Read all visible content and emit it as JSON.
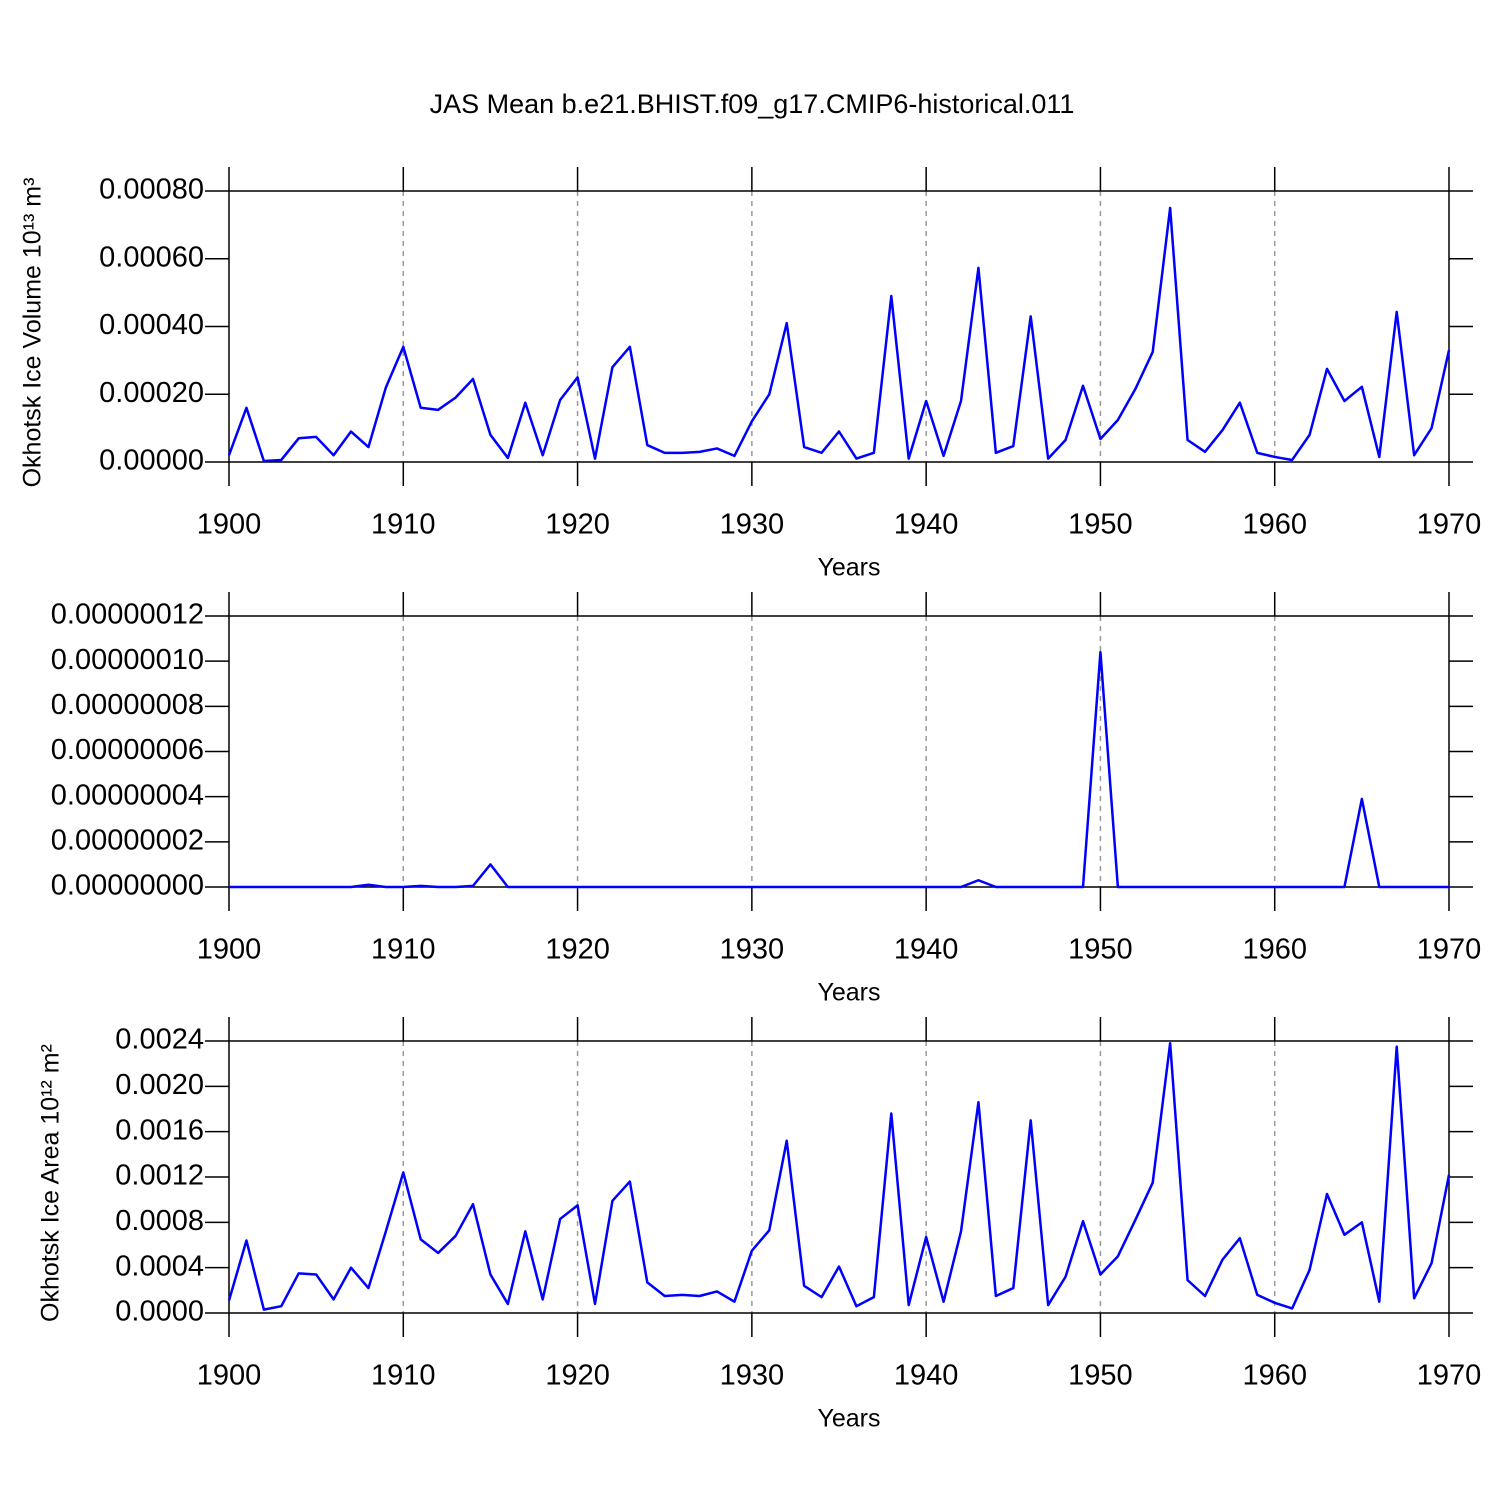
{
  "chart_data": [
    {
      "type": "line",
      "title": "JAS Mean b.e21.BHIST.f09_g17.CMIP6-historical.011",
      "ylabel": "Okhotsk Ice Volume 10¹³ m³",
      "xlabel": "Years",
      "x": [
        1900,
        1901,
        1902,
        1903,
        1904,
        1905,
        1906,
        1907,
        1908,
        1909,
        1910,
        1911,
        1912,
        1913,
        1914,
        1915,
        1916,
        1917,
        1918,
        1919,
        1920,
        1921,
        1922,
        1923,
        1924,
        1925,
        1926,
        1927,
        1928,
        1929,
        1930,
        1931,
        1932,
        1933,
        1934,
        1935,
        1936,
        1937,
        1938,
        1939,
        1940,
        1941,
        1942,
        1943,
        1944,
        1945,
        1946,
        1947,
        1948,
        1949,
        1950,
        1951,
        1952,
        1953,
        1954,
        1955,
        1956,
        1957,
        1958,
        1959,
        1960,
        1961,
        1962,
        1963,
        1964,
        1965,
        1966,
        1967,
        1968,
        1969,
        1970
      ],
      "values": [
        2e-05,
        0.00016,
        3e-06,
        6e-06,
        7e-05,
        7.4e-05,
        2e-05,
        9e-05,
        4.4e-05,
        0.00022,
        0.00034,
        0.00016,
        0.000154,
        0.00019,
        0.000245,
        8e-05,
        1.2e-05,
        0.000175,
        2e-05,
        0.000183,
        0.00025,
        1e-05,
        0.00028,
        0.00034,
        5e-05,
        2.7e-05,
        2.7e-05,
        3e-05,
        4e-05,
        1.8e-05,
        0.00012,
        0.0002,
        0.00041,
        4.4e-05,
        2.7e-05,
        9e-05,
        1e-05,
        2.7e-05,
        0.00049,
        1e-05,
        0.00018,
        1.8e-05,
        0.00018,
        0.000573,
        2.7e-05,
        4.7e-05,
        0.00043,
        1e-05,
        6.5e-05,
        0.000225,
        6.8e-05,
        0.000124,
        0.000215,
        0.000325,
        0.00075,
        6.5e-05,
        3e-05,
        9.4e-05,
        0.000175,
        2.7e-05,
        1.5e-05,
        6e-06,
        8e-05,
        0.000275,
        0.00018,
        0.000222,
        1.5e-05,
        0.000443,
        2e-05,
        0.0001,
        0.00033
      ],
      "color": "#0000ff",
      "xlim": [
        1900,
        1970
      ],
      "xticks": [
        1900,
        1910,
        1920,
        1930,
        1940,
        1950,
        1960,
        1970
      ],
      "ylim": [
        0,
        0.0008
      ],
      "yticks": [
        {
          "value": 0,
          "label": "0.00000"
        },
        {
          "value": 0.0002,
          "label": "0.00020"
        },
        {
          "value": 0.0004,
          "label": "0.00040"
        },
        {
          "value": 0.0006,
          "label": "0.00060"
        },
        {
          "value": 0.0008,
          "label": "0.00080"
        }
      ],
      "xgrid": true
    },
    {
      "type": "line",
      "xlabel": "Years",
      "x": [
        1900,
        1901,
        1902,
        1903,
        1904,
        1905,
        1906,
        1907,
        1908,
        1909,
        1910,
        1911,
        1912,
        1913,
        1914,
        1915,
        1916,
        1917,
        1918,
        1919,
        1920,
        1921,
        1922,
        1923,
        1924,
        1925,
        1926,
        1927,
        1928,
        1929,
        1930,
        1931,
        1932,
        1933,
        1934,
        1935,
        1936,
        1937,
        1938,
        1939,
        1940,
        1941,
        1942,
        1943,
        1944,
        1945,
        1946,
        1947,
        1948,
        1949,
        1950,
        1951,
        1952,
        1953,
        1954,
        1955,
        1956,
        1957,
        1958,
        1959,
        1960,
        1961,
        1962,
        1963,
        1964,
        1965,
        1966,
        1967,
        1968,
        1969,
        1970
      ],
      "values": [
        0,
        0,
        0,
        0,
        0,
        0,
        0,
        0,
        1e-09,
        0,
        0,
        5e-10,
        0,
        0,
        5e-10,
        1e-08,
        0,
        0,
        0,
        0,
        0,
        0,
        0,
        0,
        0,
        0,
        0,
        0,
        0,
        0,
        0,
        0,
        0,
        0,
        0,
        0,
        0,
        0,
        0,
        0,
        0,
        0,
        0,
        3e-09,
        0,
        0,
        0,
        0,
        0,
        0,
        1.04e-07,
        0,
        0,
        0,
        0,
        0,
        0,
        0,
        0,
        0,
        0,
        0,
        0,
        0,
        0,
        3.9e-08,
        0,
        0,
        0,
        0,
        0
      ],
      "color": "#0000ff",
      "xlim": [
        1900,
        1970
      ],
      "xticks": [
        1900,
        1910,
        1920,
        1930,
        1940,
        1950,
        1960,
        1970
      ],
      "ylim": [
        0,
        1.2e-07
      ],
      "yticks": [
        {
          "value": 0,
          "label": "0.00000000"
        },
        {
          "value": 2e-08,
          "label": "0.00000002"
        },
        {
          "value": 4e-08,
          "label": "0.00000004"
        },
        {
          "value": 6e-08,
          "label": "0.00000006"
        },
        {
          "value": 8e-08,
          "label": "0.00000008"
        },
        {
          "value": 1e-07,
          "label": "0.00000010"
        },
        {
          "value": 1.2e-07,
          "label": "0.00000012"
        }
      ],
      "xgrid": true
    },
    {
      "type": "line",
      "ylabel": "Okhotsk Ice Area 10¹² m²",
      "xlabel": "Years",
      "x": [
        1900,
        1901,
        1902,
        1903,
        1904,
        1905,
        1906,
        1907,
        1908,
        1909,
        1910,
        1911,
        1912,
        1913,
        1914,
        1915,
        1916,
        1917,
        1918,
        1919,
        1920,
        1921,
        1922,
        1923,
        1924,
        1925,
        1926,
        1927,
        1928,
        1929,
        1930,
        1931,
        1932,
        1933,
        1934,
        1935,
        1936,
        1937,
        1938,
        1939,
        1940,
        1941,
        1942,
        1943,
        1944,
        1945,
        1946,
        1947,
        1948,
        1949,
        1950,
        1951,
        1952,
        1953,
        1954,
        1955,
        1956,
        1957,
        1958,
        1959,
        1960,
        1961,
        1962,
        1963,
        1964,
        1965,
        1966,
        1967,
        1968,
        1969,
        1970
      ],
      "values": [
        0.00011,
        0.00064,
        3e-05,
        6e-05,
        0.00035,
        0.00034,
        0.00012,
        0.0004,
        0.00022,
        0.00072,
        0.00124,
        0.00065,
        0.00053,
        0.00068,
        0.00096,
        0.00034,
        8e-05,
        0.00072,
        0.00012,
        0.00083,
        0.00095,
        8e-05,
        0.00099,
        0.00116,
        0.00027,
        0.00015,
        0.00016,
        0.00015,
        0.00019,
        0.0001,
        0.00055,
        0.00073,
        0.00152,
        0.00024,
        0.00014,
        0.00041,
        6e-05,
        0.00014,
        0.00176,
        7e-05,
        0.00067,
        0.0001,
        0.00072,
        0.00186,
        0.00015,
        0.00022,
        0.0017,
        7e-05,
        0.00032,
        0.00081,
        0.00034,
        0.0005,
        0.00082,
        0.00115,
        0.00238,
        0.00029,
        0.00015,
        0.00047,
        0.00066,
        0.00016,
        9e-05,
        4e-05,
        0.00038,
        0.00105,
        0.00069,
        0.0008,
        0.0001,
        0.00235,
        0.00013,
        0.00044,
        0.00122
      ],
      "color": "#0000ff",
      "xlim": [
        1900,
        1970
      ],
      "xticks": [
        1900,
        1910,
        1920,
        1930,
        1940,
        1950,
        1960,
        1970
      ],
      "ylim": [
        0,
        0.0024
      ],
      "yticks": [
        {
          "value": 0,
          "label": "0.0000"
        },
        {
          "value": 0.0004,
          "label": "0.0004"
        },
        {
          "value": 0.0008,
          "label": "0.0008"
        },
        {
          "value": 0.0012,
          "label": "0.0012"
        },
        {
          "value": 0.0016,
          "label": "0.0016"
        },
        {
          "value": 0.002,
          "label": "0.0020"
        },
        {
          "value": 0.0024,
          "label": "0.0024"
        }
      ],
      "xgrid": true
    }
  ]
}
